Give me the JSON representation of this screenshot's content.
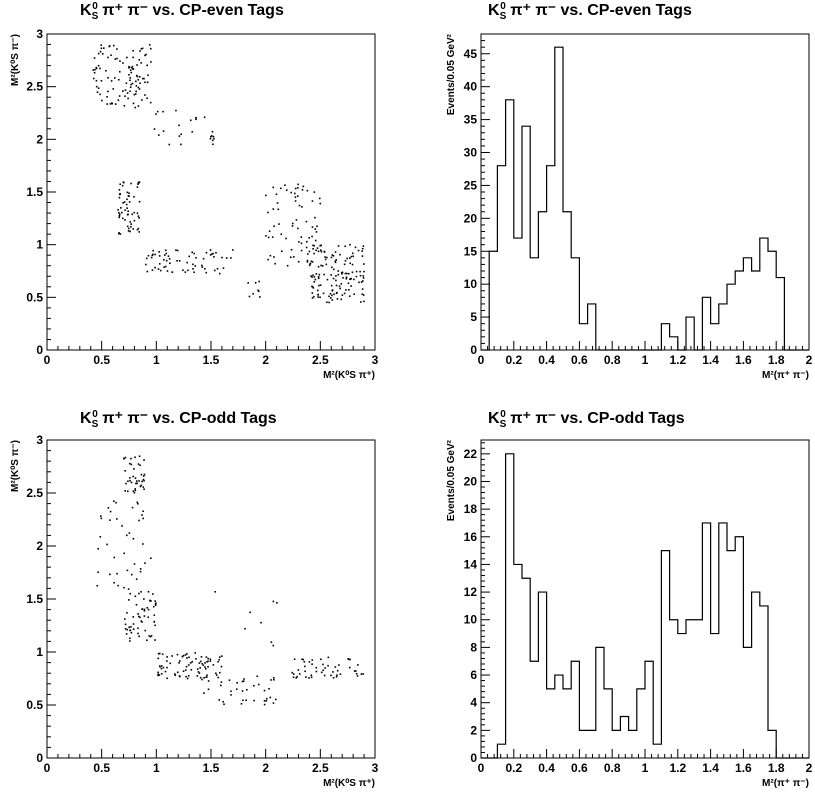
{
  "panels": {
    "tl": {
      "title_prefix": "K",
      "title_sub": "S",
      "title_sup": "0",
      "title_rest": " π⁺ π⁻ vs. CP-even Tags"
    },
    "tr": {
      "title_prefix": "K",
      "title_sub": "S",
      "title_sup": "0",
      "title_rest": " π⁺ π⁻ vs. CP-even Tags"
    },
    "bl": {
      "title_prefix": "K",
      "title_sub": "S",
      "title_sup": "0",
      "title_rest": " π⁺ π⁻ vs. CP-odd Tags"
    },
    "br": {
      "title_prefix": "K",
      "title_sub": "S",
      "title_sup": "0",
      "title_rest": " π⁺ π⁻ vs. CP-odd Tags"
    }
  },
  "chart_data": [
    {
      "type": "scatter",
      "xlabel": "M²(K⁰S π⁺)",
      "ylabel": "M²(K⁰S π⁻)",
      "xlim": [
        0,
        3
      ],
      "ylim": [
        0,
        3
      ],
      "xticks": [
        "0",
        "0.5",
        "1",
        "1.5",
        "2",
        "2.5",
        "3"
      ],
      "yticks": [
        "0",
        "0.5",
        "1",
        "1.5",
        "2",
        "2.5",
        "3"
      ],
      "clusters": [
        {
          "x": [
            0.42,
            0.95
          ],
          "y": [
            2.3,
            2.9
          ],
          "n": 110
        },
        {
          "x": [
            0.95,
            1.55
          ],
          "y": [
            1.95,
            2.3
          ],
          "n": 25
        },
        {
          "x": [
            0.65,
            0.85
          ],
          "y": [
            1.1,
            1.6
          ],
          "n": 60
        },
        {
          "x": [
            0.9,
            1.7
          ],
          "y": [
            0.7,
            0.95
          ],
          "n": 65
        },
        {
          "x": [
            2.0,
            2.5
          ],
          "y": [
            0.8,
            1.6
          ],
          "n": 70
        },
        {
          "x": [
            2.4,
            2.9
          ],
          "y": [
            0.45,
            1.0
          ],
          "n": 140
        },
        {
          "x": [
            1.8,
            2.0
          ],
          "y": [
            0.5,
            0.75
          ],
          "n": 8
        }
      ],
      "colors": {
        "points": "#000000"
      }
    },
    {
      "type": "bar",
      "histogram": true,
      "xlabel": "M²(π⁺ π⁻)",
      "ylabel": "Events/0.05 GeV²",
      "xlim": [
        0,
        2
      ],
      "ylim": [
        0,
        48
      ],
      "bin_width": 0.05,
      "xticks": [
        "0",
        "0.2",
        "0.4",
        "0.6",
        "0.8",
        "1",
        "1.2",
        "1.4",
        "1.6",
        "1.8",
        "2"
      ],
      "yticks": [
        "0",
        "5",
        "10",
        "15",
        "20",
        "25",
        "30",
        "35",
        "40",
        "45"
      ],
      "values": [
        0,
        15,
        28,
        38,
        17,
        34,
        14,
        21,
        28,
        46,
        21,
        14,
        4,
        7,
        0,
        0,
        0,
        0,
        0,
        0,
        0,
        0,
        4,
        2,
        0,
        5,
        0,
        8,
        4,
        7,
        10,
        12,
        14,
        12,
        17,
        15,
        11,
        0,
        0,
        0
      ]
    },
    {
      "type": "scatter",
      "xlabel": "M²(K⁰S π⁺)",
      "ylabel": "M²(K⁰S π⁻)",
      "xlim": [
        0,
        3
      ],
      "ylim": [
        0,
        3
      ],
      "xticks": [
        "0",
        "0.5",
        "1",
        "1.5",
        "2",
        "2.5",
        "3"
      ],
      "yticks": [
        "0",
        "0.5",
        "1",
        "1.5",
        "2",
        "2.5",
        "3"
      ],
      "clusters": [
        {
          "x": [
            0.7,
            0.9
          ],
          "y": [
            2.5,
            2.85
          ],
          "n": 40
        },
        {
          "x": [
            0.45,
            0.95
          ],
          "y": [
            1.6,
            2.5
          ],
          "n": 40
        },
        {
          "x": [
            0.7,
            1.0
          ],
          "y": [
            1.1,
            1.6
          ],
          "n": 60
        },
        {
          "x": [
            1.0,
            1.6
          ],
          "y": [
            0.75,
            1.0
          ],
          "n": 80
        },
        {
          "x": [
            1.4,
            2.1
          ],
          "y": [
            0.5,
            0.8
          ],
          "n": 40
        },
        {
          "x": [
            2.2,
            2.9
          ],
          "y": [
            0.75,
            0.95
          ],
          "n": 50
        },
        {
          "x": [
            1.5,
            2.2
          ],
          "y": [
            0.9,
            1.6
          ],
          "n": 8
        }
      ],
      "colors": {
        "points": "#000000"
      }
    },
    {
      "type": "bar",
      "histogram": true,
      "xlabel": "M²(π⁺ π⁻)",
      "ylabel": "Events/0.05 GeV²",
      "xlim": [
        0,
        2
      ],
      "ylim": [
        0,
        23
      ],
      "bin_width": 0.05,
      "xticks": [
        "0",
        "0.2",
        "0.4",
        "0.6",
        "0.8",
        "1",
        "1.2",
        "1.4",
        "1.6",
        "1.8",
        "2"
      ],
      "yticks": [
        "0",
        "2",
        "4",
        "6",
        "8",
        "10",
        "12",
        "14",
        "16",
        "18",
        "20",
        "22"
      ],
      "values": [
        0,
        0,
        1,
        22,
        14,
        13,
        7,
        12,
        5,
        6,
        5,
        7,
        2,
        2,
        8,
        5,
        2,
        3,
        2,
        5,
        7,
        1,
        15,
        10,
        9,
        10,
        10,
        17,
        9,
        17,
        15,
        16,
        8,
        12,
        11,
        2,
        0,
        0,
        0,
        0
      ]
    }
  ]
}
